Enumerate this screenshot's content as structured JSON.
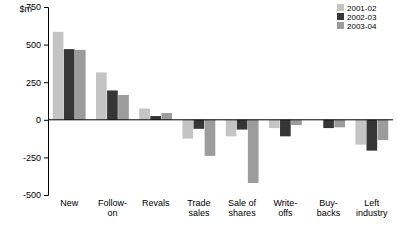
{
  "chart_data": {
    "type": "bar",
    "y_label": "$m",
    "categories": [
      "New",
      "Follow-\non",
      "Revals",
      "Trade\nsales",
      "Sale of\nshares",
      "Write-\noffs",
      "Buy-\nbacks",
      "Left\nindustry"
    ],
    "series": [
      {
        "name": "2001-02",
        "color": "#c4c4c4",
        "values": [
          585,
          315,
          75,
          -125,
          -110,
          -55,
          0,
          -165
        ]
      },
      {
        "name": "2002-03",
        "color": "#363636",
        "values": [
          470,
          195,
          25,
          -60,
          -65,
          -110,
          -55,
          -205
        ]
      },
      {
        "name": "2003-04",
        "color": "#9c9c9c",
        "values": [
          465,
          165,
          45,
          -240,
          -420,
          -35,
          -50,
          -135
        ]
      }
    ],
    "ylim": [
      -500,
      750
    ],
    "yticks": [
      -500,
      -250,
      0,
      250,
      500,
      750
    ],
    "legend": "top-right",
    "grid": false
  }
}
